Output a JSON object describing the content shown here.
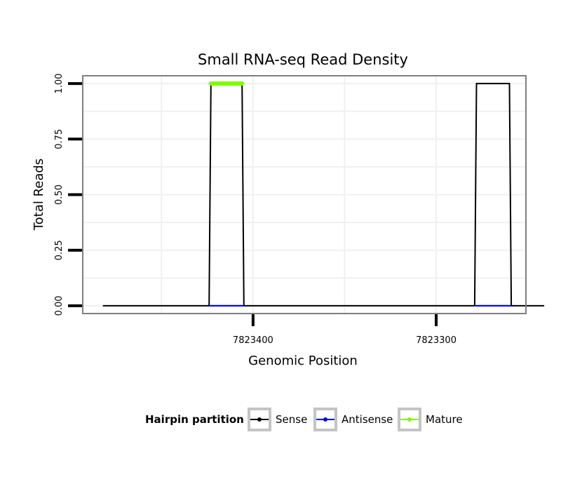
{
  "chart_data": {
    "type": "line",
    "title": "Small RNA-seq Read Density",
    "xlabel": "Genomic Position",
    "ylabel": "Total Reads",
    "x_reversed": true,
    "xlim": [
      7823493,
      7823251
    ],
    "ylim": [
      -0.035,
      1.035
    ],
    "x_ticks": [
      7823400,
      7823300
    ],
    "x_tick_labels": [
      "7823400",
      "7823300"
    ],
    "y_ticks": [
      0,
      0.25,
      0.5,
      0.75,
      1
    ],
    "y_tick_labels": [
      "0.00",
      "0.25",
      "0.50",
      "0.75",
      "1.00"
    ],
    "grid": true,
    "legend": {
      "position": "bottom",
      "title": "Hairpin partition",
      "entries": [
        {
          "name": "Sense",
          "color": "#000000"
        },
        {
          "name": "Antisense",
          "color": "#0000ff"
        },
        {
          "name": "Mature",
          "color": "#7cfc00"
        }
      ]
    },
    "series": [
      {
        "name": "Sense",
        "color": "#000000",
        "points": [
          [
            7823482,
            0
          ],
          [
            7823424,
            0
          ],
          [
            7823423,
            1
          ],
          [
            7823406,
            1
          ],
          [
            7823405,
            0
          ],
          [
            7823279,
            0
          ],
          [
            7823278,
            1
          ],
          [
            7823260,
            1
          ],
          [
            7823259,
            0
          ],
          [
            7823241,
            0
          ]
        ]
      },
      {
        "name": "Antisense",
        "color": "#0000ff",
        "points": [
          [
            7823424,
            0
          ],
          [
            7823405,
            0
          ],
          [
            7823279,
            0
          ],
          [
            7823259,
            0
          ]
        ]
      },
      {
        "name": "Mature",
        "color": "#7cfc00",
        "points": [
          [
            7823423,
            1
          ],
          [
            7823406,
            1
          ]
        ]
      }
    ]
  }
}
